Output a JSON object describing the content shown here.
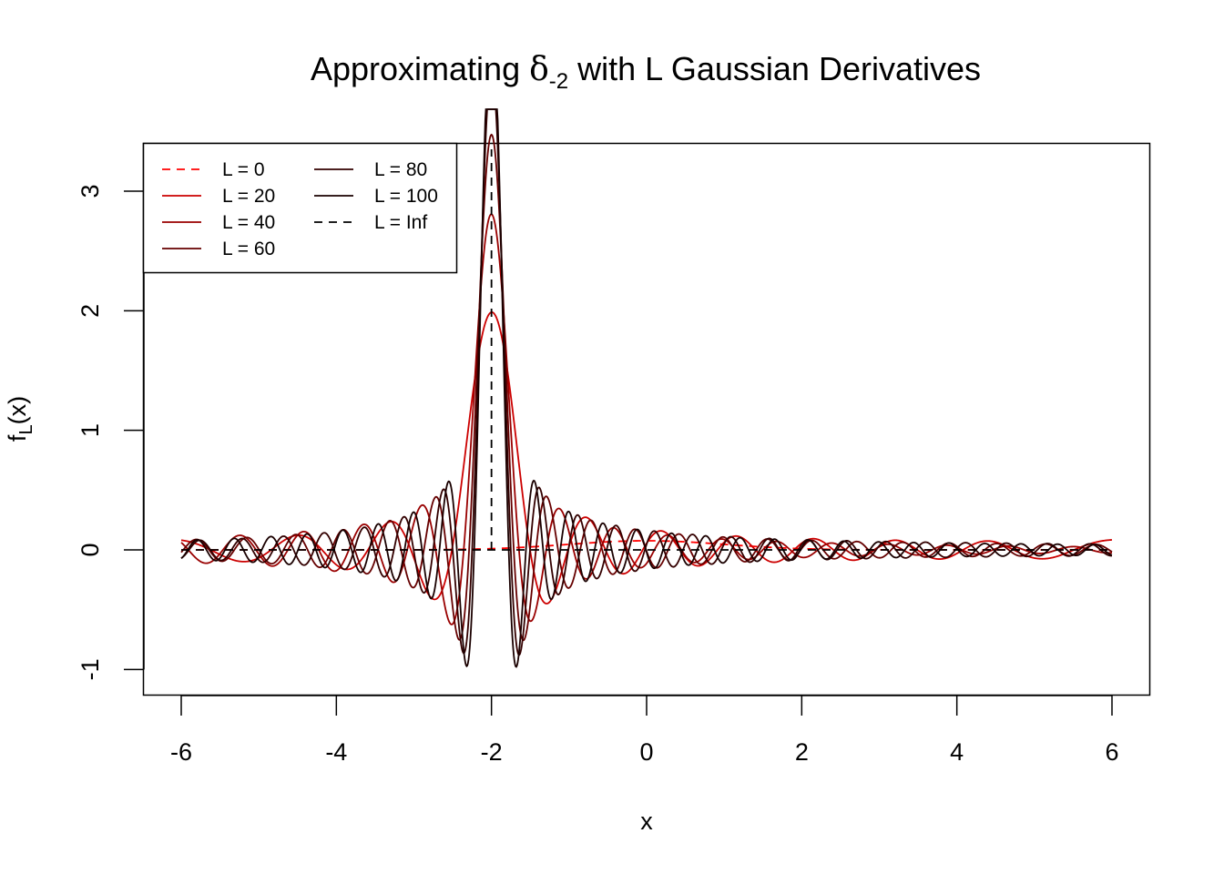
{
  "chart_data": {
    "type": "line",
    "title": {
      "prefix": "Approximating ",
      "symbol": "δ",
      "subscript": "-2",
      "suffix": " with L Gaussian Derivatives"
    },
    "xlabel": "x",
    "ylabel": {
      "main": "f",
      "subscript": "L",
      "suffix": "(x)"
    },
    "xlim": [
      -6.29,
      6.29
    ],
    "ylim": [
      -1.2,
      3.4
    ],
    "x_ticks": [
      -6,
      -4,
      -2,
      0,
      2,
      4,
      6
    ],
    "x_tick_labels": [
      "-6",
      "-4",
      "-2",
      "0",
      "2",
      "4",
      "6"
    ],
    "y_ticks": [
      -1,
      0,
      1,
      2,
      3
    ],
    "y_tick_labels": [
      "-1",
      "0",
      "1",
      "2",
      "3"
    ],
    "grid": false,
    "legend_position": "top-left",
    "function": {
      "center": -2,
      "x_range": [
        -6,
        6
      ],
      "description_free": true
    },
    "series": [
      {
        "name": "L = 0",
        "L": 0,
        "color": "#ff0000",
        "dash": "dashed"
      },
      {
        "name": "L = 20",
        "L": 20,
        "color": "#cc0000",
        "dash": "solid"
      },
      {
        "name": "L = 40",
        "L": 40,
        "color": "#990000",
        "dash": "solid"
      },
      {
        "name": "L = 60",
        "L": 60,
        "color": "#660000",
        "dash": "solid"
      },
      {
        "name": "L = 80",
        "L": 80,
        "color": "#330000",
        "dash": "solid"
      },
      {
        "name": "L = 100",
        "L": 100,
        "color": "#1a0000",
        "dash": "solid"
      },
      {
        "name": "L = Inf",
        "L": "Inf",
        "color": "#000000",
        "dash": "dashed",
        "spike_height": 3.35
      }
    ]
  }
}
